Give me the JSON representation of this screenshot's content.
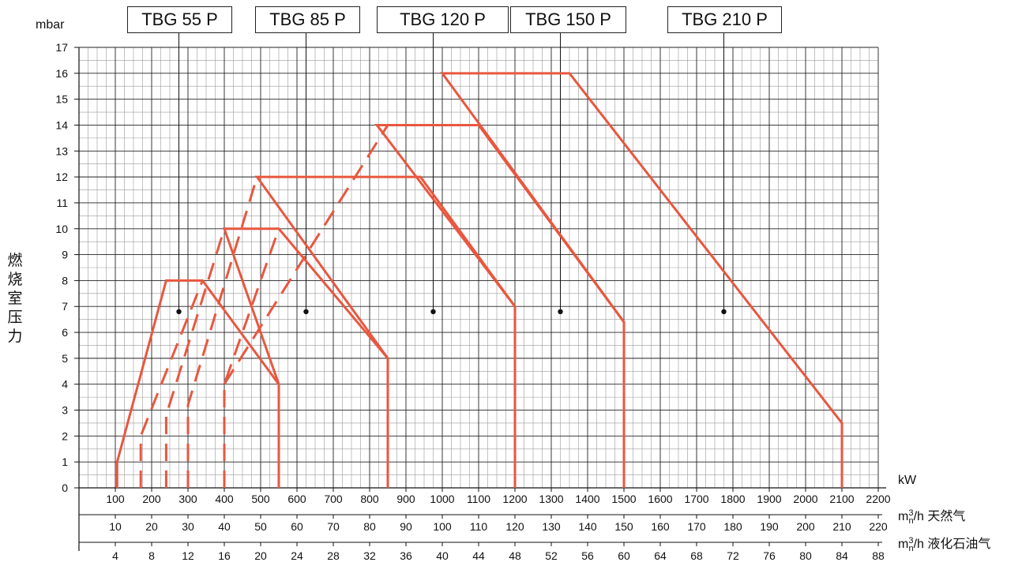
{
  "chart_data": {
    "type": "line",
    "ylabel": "燃烧室压力",
    "yunit": "mbar",
    "ylim": [
      0,
      17
    ],
    "yticks": [
      0,
      1,
      2,
      3,
      4,
      5,
      6,
      7,
      8,
      9,
      10,
      11,
      12,
      13,
      14,
      15,
      16,
      17
    ],
    "xlim": [
      0,
      2200
    ],
    "x_axes": [
      {
        "unit": "kW",
        "ticks": [
          100,
          200,
          300,
          400,
          500,
          600,
          700,
          800,
          900,
          1000,
          1100,
          1200,
          1300,
          1400,
          1500,
          1600,
          1700,
          1800,
          1900,
          2000,
          2100,
          2200
        ]
      },
      {
        "unit": "m",
        "unit_sub": "n",
        "unit_sup": "3",
        "unit_rest": "/h 天然气",
        "ticks": [
          10,
          20,
          30,
          40,
          50,
          60,
          70,
          80,
          90,
          100,
          110,
          120,
          130,
          140,
          150,
          160,
          170,
          180,
          190,
          200,
          210,
          220
        ]
      },
      {
        "unit": "m",
        "unit_sub": "n",
        "unit_sup": "3",
        "unit_rest": "/h 液化石油气",
        "ticks": [
          4,
          8,
          12,
          16,
          20,
          24,
          28,
          32,
          36,
          40,
          44,
          48,
          52,
          56,
          60,
          64,
          68,
          72,
          76,
          80,
          84,
          88
        ]
      }
    ],
    "series": [
      {
        "name": "TBG 55 P",
        "marker": [
          275,
          6.8
        ],
        "solid": [
          [
            105,
            0
          ],
          [
            105,
            1
          ],
          [
            240,
            8
          ],
          [
            340,
            8
          ],
          [
            550,
            4
          ],
          [
            550,
            0
          ]
        ],
        "dashed": [
          [
            170,
            0
          ],
          [
            170,
            2
          ],
          [
            340,
            8
          ]
        ]
      },
      {
        "name": "TBG 85 P",
        "marker": [
          625,
          6.8
        ],
        "solid": [
          [
            550,
            0
          ],
          [
            550,
            4
          ],
          [
            400,
            10
          ],
          [
            550,
            10
          ],
          [
            850,
            5
          ],
          [
            850,
            0
          ]
        ],
        "dashed": [
          [
            400,
            0
          ],
          [
            400,
            4
          ],
          [
            550,
            10
          ]
        ]
      },
      {
        "name": "TBG 120 P",
        "marker": [
          975,
          6.8
        ],
        "solid": [
          [
            850,
            0
          ],
          [
            850,
            5
          ],
          [
            490,
            12
          ],
          [
            940,
            12
          ],
          [
            1200,
            7
          ],
          [
            1200,
            0
          ]
        ],
        "dashed": [
          [
            240,
            0
          ],
          [
            240,
            2.8
          ],
          [
            400,
            10
          ]
        ]
      },
      {
        "name": "TBG 150 P",
        "marker": [
          1325,
          6.8
        ],
        "solid": [
          [
            1200,
            0
          ],
          [
            1200,
            7
          ],
          [
            820,
            14
          ],
          [
            1100,
            14
          ],
          [
            1500,
            6.4
          ],
          [
            1500,
            0
          ]
        ],
        "dashed": [
          [
            300,
            0
          ],
          [
            300,
            3.2
          ],
          [
            490,
            12
          ]
        ]
      },
      {
        "name": "TBG 210 P",
        "marker": [
          1775,
          6.8
        ],
        "solid": [
          [
            1500,
            0
          ],
          [
            1500,
            6.4
          ],
          [
            1000,
            16
          ],
          [
            1350,
            16
          ],
          [
            2100,
            2.5
          ],
          [
            2100,
            0
          ]
        ],
        "dashed": [
          [
            400,
            4
          ],
          [
            850,
            14
          ]
        ]
      }
    ],
    "grid": true,
    "line_color": "#e8573f"
  }
}
